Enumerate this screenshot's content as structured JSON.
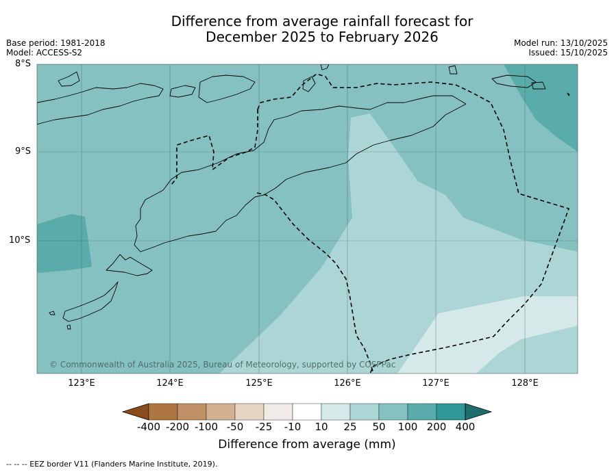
{
  "title_line1": "Difference from average rainfall forecast for",
  "title_line2": "December 2025 to February 2026",
  "base_period": "Base period: 1981-2018",
  "model": "Model: ACCESS-S2",
  "model_run": "Model run: 13/10/2025",
  "issued": "Issued: 15/10/2025",
  "lat_labels": [
    "8°S",
    "9°S",
    "10°S"
  ],
  "lon_labels": [
    "123°E",
    "124°E",
    "125°E",
    "126°E",
    "127°E",
    "128°E"
  ],
  "copyright": "© Commonwealth of Australia 2025, Bureau of Meteorology, supported by COSPPac",
  "colorbar": {
    "title": "Difference from average (mm)",
    "ticks": [
      "-400",
      "-200",
      "-100",
      "-50",
      "-25",
      "-10",
      "10",
      "25",
      "50",
      "100",
      "200",
      "400"
    ],
    "colors": [
      "#8b4c1c",
      "#ae7742",
      "#c09067",
      "#d2b090",
      "#e5d5c2",
      "#efebe7",
      "#ffffff",
      "#d5eae8",
      "#acd6d5",
      "#84c1c0",
      "#5aacab",
      "#2f9896",
      "#1d6e6c"
    ]
  },
  "legend_line": "--  --  -- EEZ border V11 (Flanders Marine Institute, 2019).",
  "icons": [
    "eez-border-dashed-line"
  ]
}
